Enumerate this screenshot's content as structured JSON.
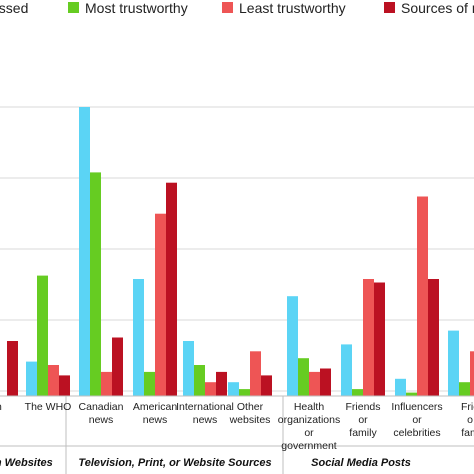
{
  "chart_data": {
    "type": "bar",
    "title": "",
    "xlabel": "",
    "ylabel": "",
    "grid": true,
    "legend_position": "top",
    "ylim": [
      0,
      90
    ],
    "series": [
      {
        "name": "...cessed",
        "color": "#5BD4F5",
        "values": [
          null,
          10,
          84,
          34,
          16,
          4,
          29,
          15,
          5,
          19
        ]
      },
      {
        "name": "Most trustworthy",
        "color": "#66CC22",
        "values": [
          null,
          35,
          65,
          7,
          9,
          2,
          11,
          2,
          1,
          4
        ]
      },
      {
        "name": "Least trustworthy",
        "color": "#EE5555",
        "values": [
          null,
          9,
          7,
          53,
          4,
          13,
          7,
          34,
          58,
          13
        ]
      },
      {
        "name": "Sources of m...",
        "color": "#BB1122",
        "values": [
          16,
          6,
          17,
          62,
          7,
          6,
          8,
          33,
          34,
          null
        ]
      }
    ],
    "categories": [
      {
        "label": "...an",
        "lines": [
          "an"
        ]
      },
      {
        "label": "The WHO",
        "lines": [
          "The WHO"
        ]
      },
      {
        "label": "Canadian news",
        "lines": [
          "Canadian",
          "news"
        ]
      },
      {
        "label": "American news",
        "lines": [
          "American",
          "news"
        ]
      },
      {
        "label": "International news",
        "lines": [
          "International",
          "news"
        ]
      },
      {
        "label": "Other websites",
        "lines": [
          "Other",
          "websites"
        ]
      },
      {
        "label": "Health organizations or government",
        "lines": [
          "Health",
          "organizations",
          "or",
          "government"
        ]
      },
      {
        "label": "Friends or family",
        "lines": [
          "Friends",
          "or",
          "family"
        ]
      },
      {
        "label": "Influencers or celebrities",
        "lines": [
          "Influencers",
          "or",
          "celebrities"
        ]
      },
      {
        "label": "Frie... o... fam...",
        "lines": [
          "Frie",
          "o",
          "fam"
        ]
      }
    ],
    "groups": [
      {
        "label": "...th Websites"
      },
      {
        "label": "Television, Print, or Website Sources"
      },
      {
        "label": "Social Media Posts"
      }
    ]
  }
}
